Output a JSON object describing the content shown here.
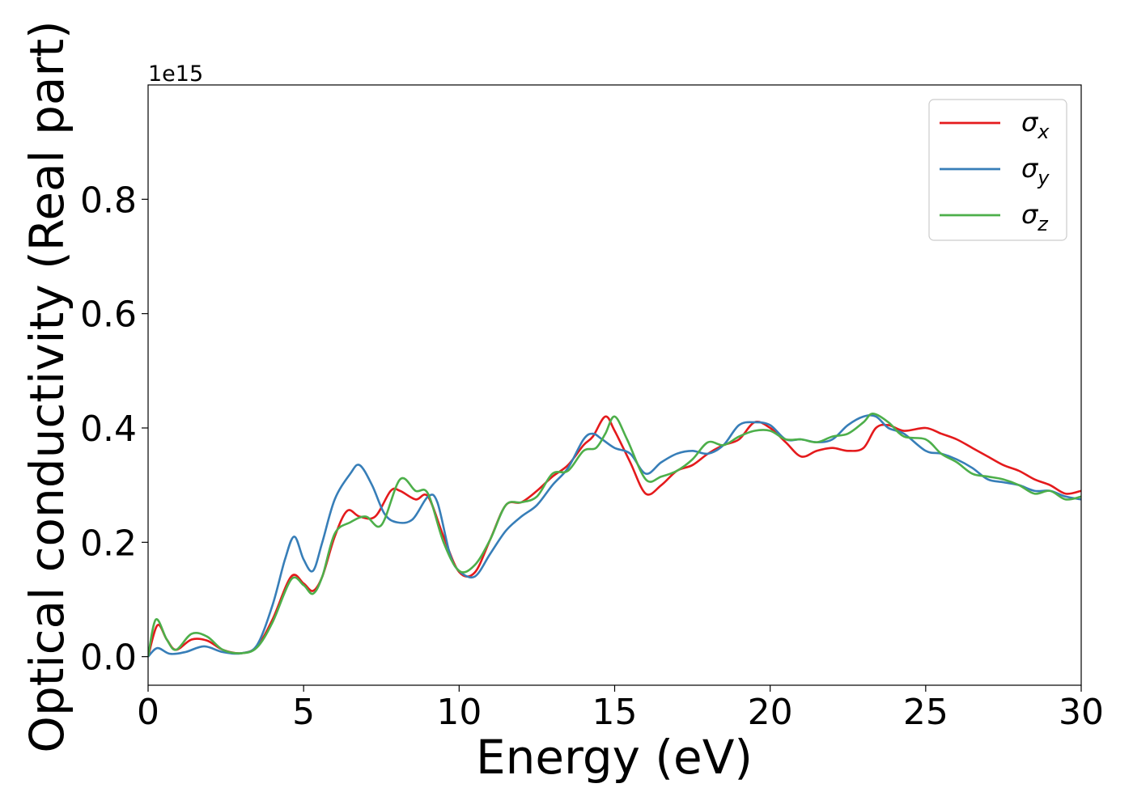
{
  "chart_data": {
    "type": "line",
    "xlabel": "Energy (eV)",
    "ylabel": "Optical conductivity (Real part)",
    "y_offset_label": "1e15",
    "xlim": [
      0,
      30
    ],
    "ylim": [
      -0.05,
      1.0
    ],
    "xticks": [
      0,
      5,
      10,
      15,
      20,
      25,
      30
    ],
    "yticks": [
      0.0,
      0.2,
      0.4,
      0.6,
      0.8
    ],
    "xtick_labels": [
      "0",
      "5",
      "10",
      "15",
      "20",
      "25",
      "30"
    ],
    "ytick_labels": [
      "0.0",
      "0.2",
      "0.4",
      "0.6",
      "0.8"
    ],
    "grid": false,
    "legend_position": "top-right",
    "series": [
      {
        "name": "σx",
        "symbol": "σ",
        "subscript": "x",
        "color": "#e41a1c",
        "points": [
          [
            0,
            0.0
          ],
          [
            0.3,
            0.055
          ],
          [
            0.6,
            0.03
          ],
          [
            0.9,
            0.012
          ],
          [
            1.4,
            0.03
          ],
          [
            1.9,
            0.028
          ],
          [
            2.4,
            0.012
          ],
          [
            3.0,
            0.006
          ],
          [
            3.5,
            0.018
          ],
          [
            4.0,
            0.065
          ],
          [
            4.6,
            0.14
          ],
          [
            5.0,
            0.128
          ],
          [
            5.3,
            0.115
          ],
          [
            5.6,
            0.14
          ],
          [
            6.0,
            0.21
          ],
          [
            6.4,
            0.255
          ],
          [
            6.8,
            0.245
          ],
          [
            7.3,
            0.245
          ],
          [
            7.8,
            0.29
          ],
          [
            8.1,
            0.29
          ],
          [
            8.6,
            0.275
          ],
          [
            9.0,
            0.28
          ],
          [
            9.5,
            0.21
          ],
          [
            10.0,
            0.148
          ],
          [
            10.5,
            0.147
          ],
          [
            11.0,
            0.205
          ],
          [
            11.5,
            0.265
          ],
          [
            12.0,
            0.27
          ],
          [
            12.5,
            0.29
          ],
          [
            13.0,
            0.315
          ],
          [
            13.5,
            0.335
          ],
          [
            14.0,
            0.37
          ],
          [
            14.3,
            0.385
          ],
          [
            14.7,
            0.42
          ],
          [
            15.0,
            0.395
          ],
          [
            15.5,
            0.34
          ],
          [
            16.0,
            0.285
          ],
          [
            16.5,
            0.3
          ],
          [
            17.0,
            0.325
          ],
          [
            17.5,
            0.335
          ],
          [
            18.0,
            0.355
          ],
          [
            18.5,
            0.37
          ],
          [
            19.0,
            0.38
          ],
          [
            19.5,
            0.41
          ],
          [
            20.0,
            0.4
          ],
          [
            20.5,
            0.375
          ],
          [
            21.0,
            0.35
          ],
          [
            21.5,
            0.36
          ],
          [
            22.0,
            0.365
          ],
          [
            22.5,
            0.36
          ],
          [
            23.0,
            0.365
          ],
          [
            23.4,
            0.4
          ],
          [
            23.8,
            0.405
          ],
          [
            24.3,
            0.395
          ],
          [
            25.0,
            0.4
          ],
          [
            25.5,
            0.39
          ],
          [
            26.0,
            0.38
          ],
          [
            26.5,
            0.365
          ],
          [
            27.0,
            0.35
          ],
          [
            27.5,
            0.335
          ],
          [
            28.0,
            0.325
          ],
          [
            28.5,
            0.31
          ],
          [
            29.0,
            0.3
          ],
          [
            29.5,
            0.285
          ],
          [
            30.0,
            0.29
          ]
        ]
      },
      {
        "name": "σy",
        "symbol": "σ",
        "subscript": "y",
        "color": "#377eb8",
        "points": [
          [
            0,
            0.0
          ],
          [
            0.3,
            0.015
          ],
          [
            0.7,
            0.005
          ],
          [
            1.2,
            0.008
          ],
          [
            1.8,
            0.018
          ],
          [
            2.4,
            0.008
          ],
          [
            3.0,
            0.006
          ],
          [
            3.5,
            0.02
          ],
          [
            4.0,
            0.09
          ],
          [
            4.4,
            0.17
          ],
          [
            4.7,
            0.21
          ],
          [
            5.0,
            0.17
          ],
          [
            5.3,
            0.15
          ],
          [
            5.6,
            0.2
          ],
          [
            6.0,
            0.275
          ],
          [
            6.5,
            0.32
          ],
          [
            6.8,
            0.335
          ],
          [
            7.2,
            0.3
          ],
          [
            7.6,
            0.25
          ],
          [
            8.0,
            0.235
          ],
          [
            8.5,
            0.24
          ],
          [
            9.0,
            0.28
          ],
          [
            9.3,
            0.27
          ],
          [
            9.7,
            0.18
          ],
          [
            10.0,
            0.15
          ],
          [
            10.5,
            0.14
          ],
          [
            11.0,
            0.18
          ],
          [
            11.5,
            0.22
          ],
          [
            12.0,
            0.245
          ],
          [
            12.5,
            0.265
          ],
          [
            13.0,
            0.3
          ],
          [
            13.5,
            0.33
          ],
          [
            14.0,
            0.38
          ],
          [
            14.3,
            0.39
          ],
          [
            14.6,
            0.38
          ],
          [
            15.0,
            0.365
          ],
          [
            15.5,
            0.355
          ],
          [
            16.0,
            0.32
          ],
          [
            16.5,
            0.34
          ],
          [
            17.0,
            0.355
          ],
          [
            17.5,
            0.36
          ],
          [
            18.0,
            0.355
          ],
          [
            18.5,
            0.37
          ],
          [
            19.0,
            0.405
          ],
          [
            19.5,
            0.41
          ],
          [
            20.0,
            0.405
          ],
          [
            20.5,
            0.38
          ],
          [
            21.0,
            0.38
          ],
          [
            21.5,
            0.375
          ],
          [
            22.0,
            0.38
          ],
          [
            22.5,
            0.405
          ],
          [
            23.0,
            0.42
          ],
          [
            23.4,
            0.42
          ],
          [
            23.8,
            0.4
          ],
          [
            24.3,
            0.39
          ],
          [
            25.0,
            0.36
          ],
          [
            25.5,
            0.355
          ],
          [
            26.0,
            0.345
          ],
          [
            26.5,
            0.33
          ],
          [
            27.0,
            0.31
          ],
          [
            27.5,
            0.305
          ],
          [
            28.0,
            0.3
          ],
          [
            28.5,
            0.29
          ],
          [
            29.0,
            0.29
          ],
          [
            29.5,
            0.28
          ],
          [
            30.0,
            0.275
          ]
        ]
      },
      {
        "name": "σz",
        "symbol": "σ",
        "subscript": "z",
        "color": "#4daf4a",
        "points": [
          [
            0,
            0.0
          ],
          [
            0.25,
            0.065
          ],
          [
            0.6,
            0.03
          ],
          [
            0.9,
            0.012
          ],
          [
            1.4,
            0.04
          ],
          [
            1.9,
            0.035
          ],
          [
            2.4,
            0.012
          ],
          [
            3.0,
            0.006
          ],
          [
            3.5,
            0.016
          ],
          [
            4.0,
            0.06
          ],
          [
            4.6,
            0.135
          ],
          [
            5.0,
            0.125
          ],
          [
            5.3,
            0.11
          ],
          [
            5.6,
            0.14
          ],
          [
            6.0,
            0.215
          ],
          [
            6.5,
            0.235
          ],
          [
            7.0,
            0.245
          ],
          [
            7.5,
            0.23
          ],
          [
            8.1,
            0.31
          ],
          [
            8.6,
            0.29
          ],
          [
            9.0,
            0.285
          ],
          [
            9.5,
            0.2
          ],
          [
            10.0,
            0.15
          ],
          [
            10.5,
            0.16
          ],
          [
            11.0,
            0.205
          ],
          [
            11.5,
            0.265
          ],
          [
            12.0,
            0.27
          ],
          [
            12.5,
            0.28
          ],
          [
            13.0,
            0.32
          ],
          [
            13.5,
            0.325
          ],
          [
            14.0,
            0.36
          ],
          [
            14.4,
            0.365
          ],
          [
            14.7,
            0.39
          ],
          [
            15.0,
            0.42
          ],
          [
            15.4,
            0.38
          ],
          [
            16.0,
            0.31
          ],
          [
            16.5,
            0.315
          ],
          [
            17.0,
            0.325
          ],
          [
            17.5,
            0.345
          ],
          [
            18.0,
            0.375
          ],
          [
            18.5,
            0.37
          ],
          [
            19.0,
            0.385
          ],
          [
            19.5,
            0.395
          ],
          [
            20.0,
            0.395
          ],
          [
            20.5,
            0.38
          ],
          [
            21.0,
            0.38
          ],
          [
            21.5,
            0.375
          ],
          [
            22.0,
            0.385
          ],
          [
            22.5,
            0.39
          ],
          [
            23.0,
            0.41
          ],
          [
            23.3,
            0.425
          ],
          [
            23.8,
            0.41
          ],
          [
            24.3,
            0.385
          ],
          [
            25.0,
            0.38
          ],
          [
            25.5,
            0.355
          ],
          [
            26.0,
            0.34
          ],
          [
            26.5,
            0.32
          ],
          [
            27.0,
            0.315
          ],
          [
            27.5,
            0.31
          ],
          [
            28.0,
            0.3
          ],
          [
            28.5,
            0.285
          ],
          [
            29.0,
            0.29
          ],
          [
            29.5,
            0.275
          ],
          [
            30.0,
            0.28
          ]
        ]
      }
    ]
  }
}
